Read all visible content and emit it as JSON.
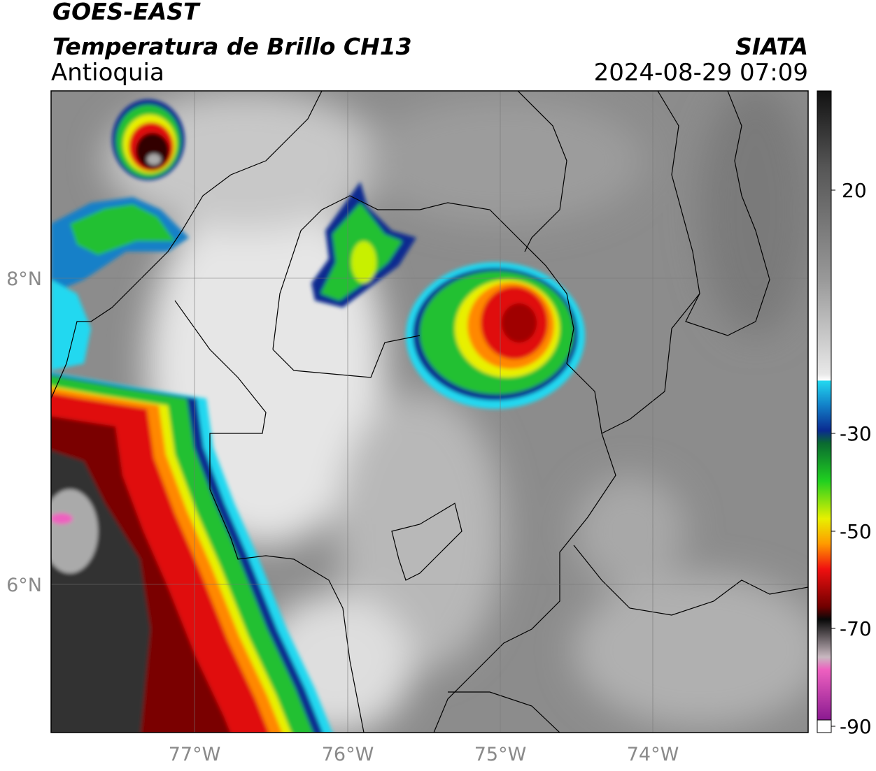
{
  "header": {
    "satellite": "GOES-EAST",
    "product": "Temperatura de Brillo CH13",
    "region": "Antioquia",
    "agency": "SIATA",
    "datetime": "2024-08-29 07:09"
  },
  "map": {
    "lat_labels": [
      "8°N",
      "6°N"
    ],
    "lon_labels": [
      "77°W",
      "76°W",
      "75°W",
      "74°W"
    ]
  },
  "colorbar": {
    "tick_labels": [
      "20",
      "-30",
      "-50",
      "-70",
      "-90"
    ]
  }
}
